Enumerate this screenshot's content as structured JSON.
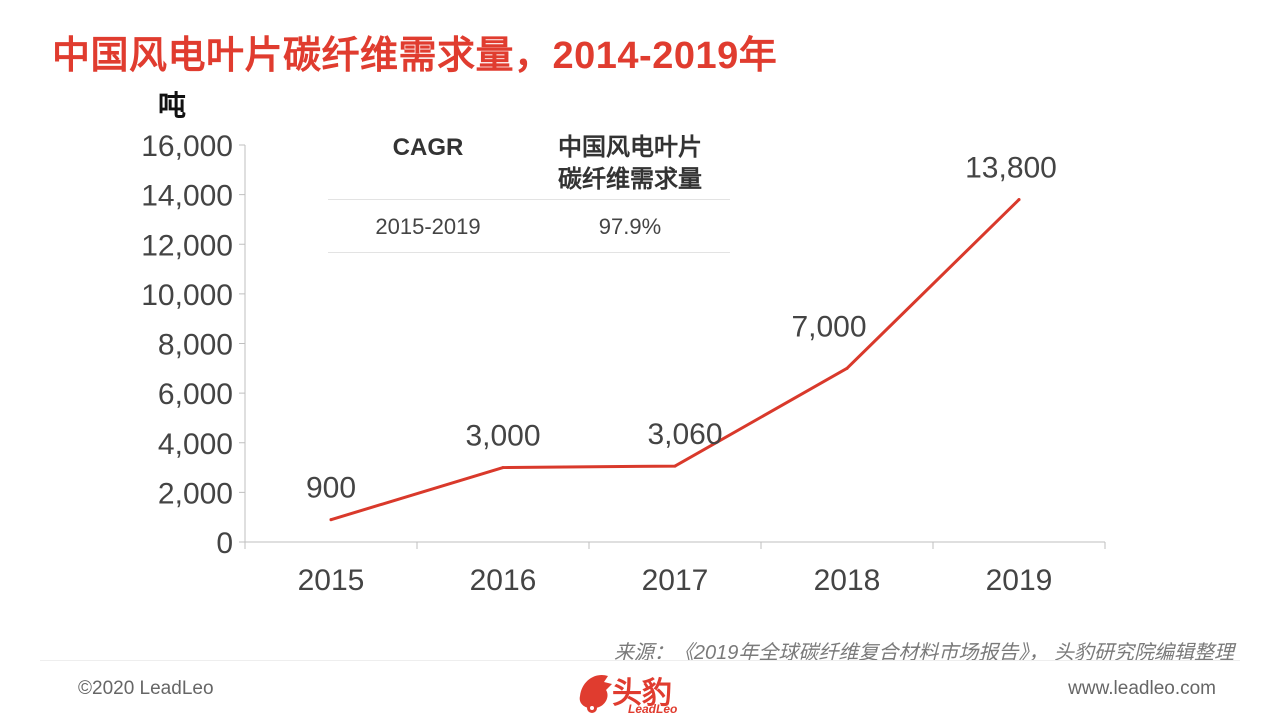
{
  "page": {
    "title": "中国风电叶片碳纤维需求量，2014-2019年",
    "unit_label": "吨",
    "source": "来源：《2019年全球碳纤维复合材料市场报告》，  头豹研究院编辑整理",
    "copyright": "©2020 LeadLeo",
    "website": "www.leadleo.com",
    "logo_text": "头豹",
    "logo_sub": "LeadLeo",
    "accent_color": "#e03c2f"
  },
  "cagr_table": {
    "header_left": "CAGR",
    "header_right_line1": "中国风电叶片",
    "header_right_line2": "碳纤维需求量",
    "period": "2015-2019",
    "value": "97.9%"
  },
  "chart_data": {
    "type": "line",
    "categories": [
      "2015",
      "2016",
      "2017",
      "2018",
      "2019"
    ],
    "series": [
      {
        "values": [
          900,
          3000,
          3060,
          7000,
          13800
        ],
        "color": "#d9392b"
      }
    ],
    "data_labels": [
      "900",
      "3,000",
      "3,060",
      "7,000",
      "13,800"
    ],
    "ylabel": "吨",
    "ylim": [
      0,
      16000
    ],
    "yticks": [
      0,
      2000,
      4000,
      6000,
      8000,
      10000,
      12000,
      14000,
      16000
    ],
    "ytick_labels": [
      "0",
      "2,000",
      "4,000",
      "6,000",
      "8,000",
      "10,000",
      "12,000",
      "14,000",
      "16,000"
    ],
    "grid": false,
    "legend": "none"
  }
}
